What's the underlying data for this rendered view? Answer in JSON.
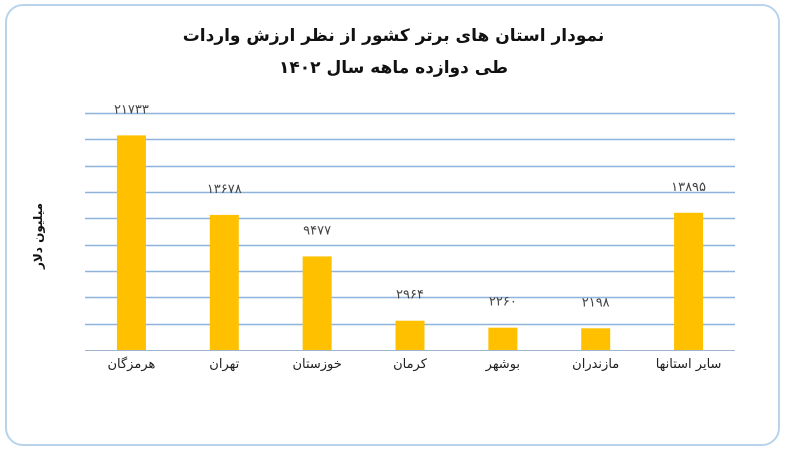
{
  "chart_data": {
    "type": "bar",
    "title_line1": "نمودار استان های برتر کشور از نظر ارزش واردات",
    "title_line2": "طی دوازده ماهه سال ۱۴۰۲",
    "ylabel": "میلیون دلار",
    "xlabel": "",
    "categories": [
      "هرمزگان",
      "تهران",
      "خوزستان",
      "کرمان",
      "بوشهر",
      "مازندران",
      "سایر استانها"
    ],
    "values": [
      21733,
      13678,
      9477,
      2964,
      2260,
      2198,
      13895
    ],
    "value_labels": [
      "۲۱۷۳۳",
      "۱۳۶۷۸",
      "۹۴۷۷",
      "۲۹۶۴",
      "۲۲۶۰",
      "۲۱۹۸",
      "۱۳۸۹۵"
    ],
    "ylim": [
      0,
      24000
    ],
    "grid": true,
    "bar_color": "#ffc000",
    "grid_color": "#8fb4db"
  }
}
